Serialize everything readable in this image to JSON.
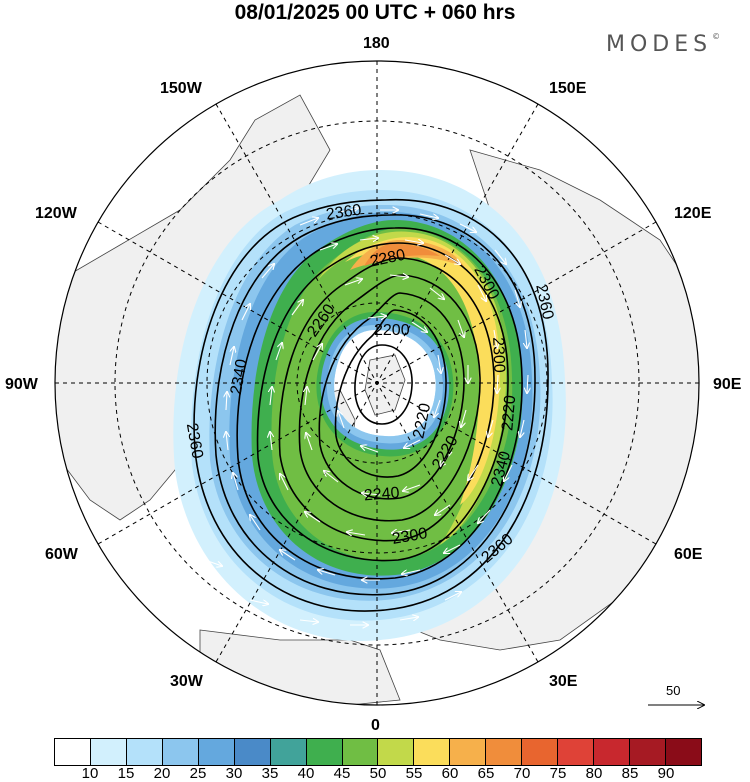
{
  "header": {
    "title": "08/01/2025  00 UTC  + 060 hrs",
    "brand": "MODES",
    "brand_mark": "©"
  },
  "map": {
    "projection": "north polar stereographic",
    "longitude_labels": [
      "180",
      "150E",
      "120E",
      "90E",
      "60E",
      "30E",
      "0",
      "30W",
      "60W",
      "90W",
      "120W",
      "150W"
    ],
    "contour_labels": [
      "2360",
      "2280",
      "2300",
      "2360",
      "2260",
      "2200",
      "2300",
      "2340",
      "2220",
      "2220",
      "2360",
      "2220",
      "2340",
      "2240",
      "2300",
      "2360"
    ],
    "reference_vector_label": "50",
    "colors": {
      "land": "#f0f0f0",
      "ocean": "#ffffff",
      "coast": "#444444",
      "contour": "#000000",
      "wind_arrow": "#ffffff"
    }
  },
  "colorbar": {
    "tick_labels": [
      "10",
      "15",
      "20",
      "25",
      "30",
      "35",
      "40",
      "45",
      "50",
      "55",
      "60",
      "65",
      "70",
      "75",
      "80",
      "85",
      "90"
    ],
    "colors": [
      "#ffffff",
      "#d2f0fd",
      "#b4e1fa",
      "#8cc6ee",
      "#64a8de",
      "#4a8ac8",
      "#41a39a",
      "#3faf4e",
      "#70be44",
      "#c2d94a",
      "#fbdd5b",
      "#f6b04b",
      "#f08d3b",
      "#e8652f",
      "#df4237",
      "#c8282e",
      "#a61a23",
      "#8a0c18"
    ]
  }
}
